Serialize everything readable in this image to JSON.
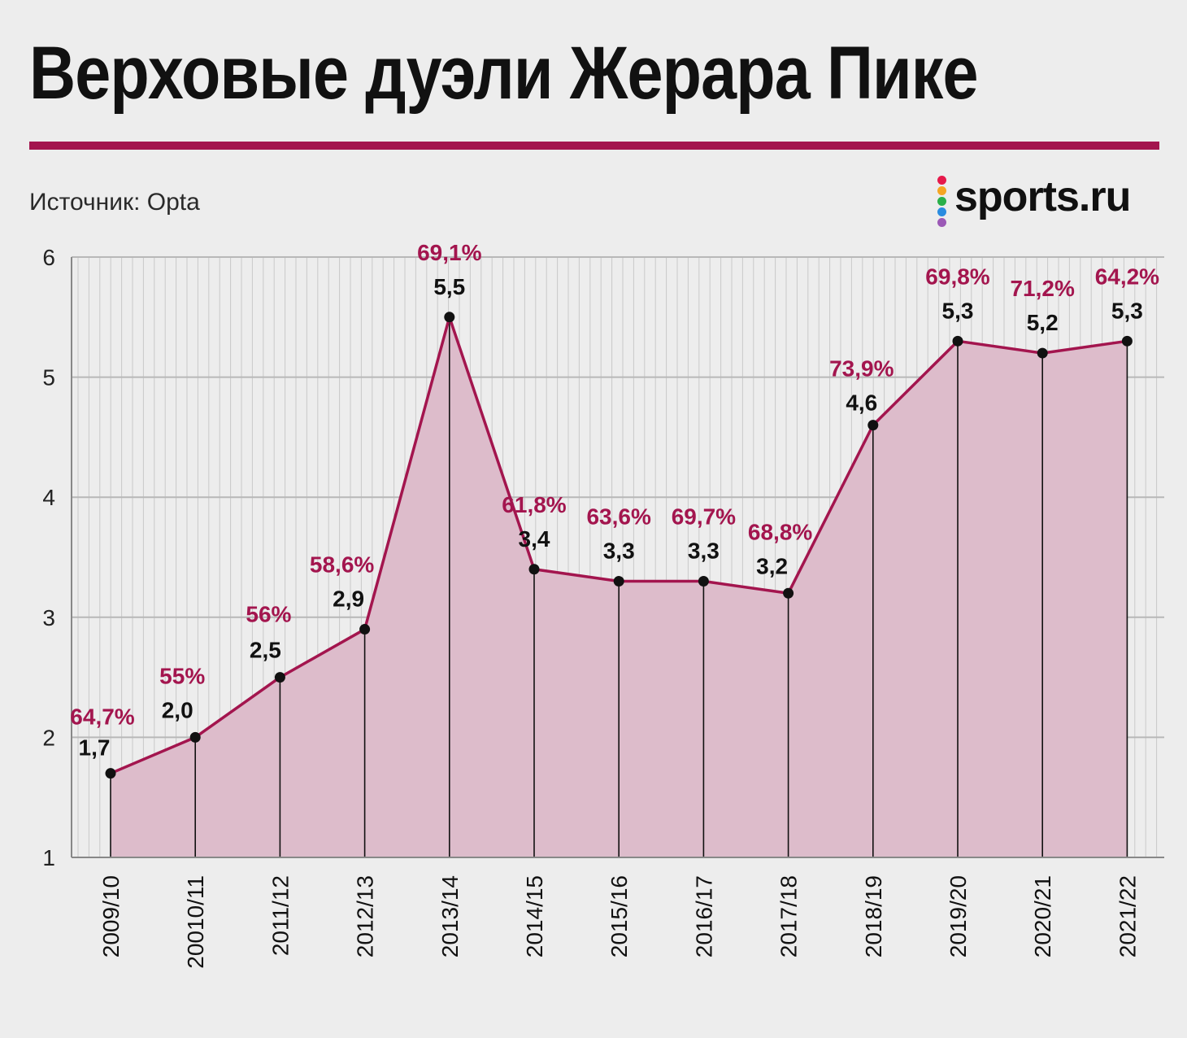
{
  "header": {
    "title": "Верховые дуэли Жерара Пике",
    "source": "Источник: Opta"
  },
  "logo": {
    "text": "sports.ru",
    "dot_colors": [
      "#e6194b",
      "#f5a623",
      "#2ab04a",
      "#2a8ce0",
      "#9b59b6"
    ]
  },
  "colors": {
    "accent": "#a3154e",
    "fill": "#ddbccb",
    "marker": "#111111",
    "grid": "#c9c9c9",
    "background": "#ededed"
  },
  "chart_data": {
    "type": "area",
    "title": "Верховые дуэли Жерара Пике",
    "categories": [
      "2009/10",
      "20010/11",
      "2011/12",
      "2012/13",
      "2013/14",
      "2014/15",
      "2015/16",
      "2016/17",
      "2017/18",
      "2018/19",
      "2019/20",
      "2020/21",
      "2021/22"
    ],
    "series": [
      {
        "values": [
          1.7,
          2.0,
          2.5,
          2.9,
          5.5,
          3.4,
          3.3,
          3.3,
          3.2,
          4.6,
          5.3,
          5.2,
          5.3
        ],
        "value_labels": [
          "1,7",
          "2,0",
          "2,5",
          "2,9",
          "5,5",
          "3,4",
          "3,3",
          "3,3",
          "3,2",
          "4,6",
          "5,3",
          "5,2",
          "5,3"
        ]
      }
    ],
    "percent_labels": [
      "64,7%",
      "55%",
      "56%",
      "58,6%",
      "69,1%",
      "61,8%",
      "63,6%",
      "69,7%",
      "68,8%",
      "73,9%",
      "69,8%",
      "71,2%",
      "64,2%"
    ],
    "yticks": [
      "1",
      "2",
      "3",
      "4",
      "5",
      "6"
    ],
    "ylim": [
      1,
      6
    ],
    "grid": true,
    "xlabel": "",
    "ylabel": ""
  }
}
